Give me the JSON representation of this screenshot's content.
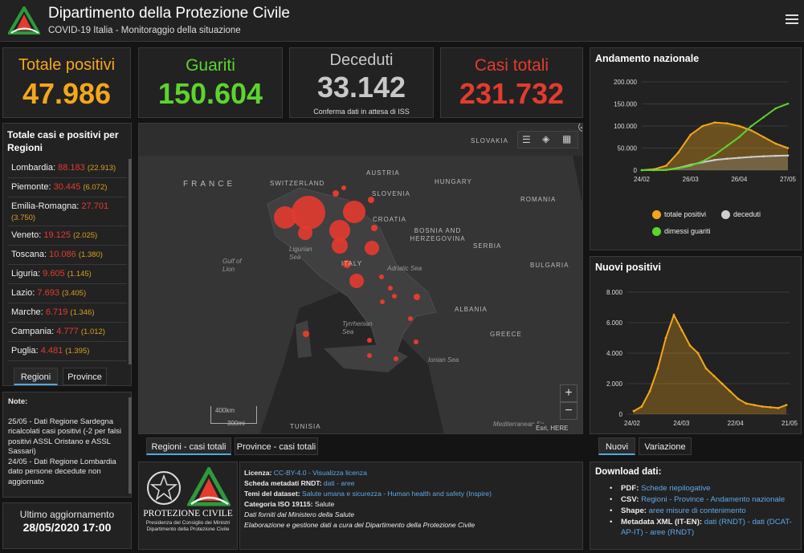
{
  "header": {
    "title": "Dipartimento della Protezione Civile",
    "subtitle": "COVID-19 Italia - Monitoraggio della situazione"
  },
  "stats": {
    "positivi": {
      "label": "Totale positivi",
      "value": "47.986",
      "color": "#f3a71b"
    },
    "guariti": {
      "label": "Guariti",
      "value": "150.604",
      "color": "#5cd52d"
    },
    "deceduti": {
      "label": "Deceduti",
      "value": "33.142",
      "note": "Conferma dati in attesa di ISS",
      "color": "#c8c8c8"
    },
    "totali": {
      "label": "Casi totali",
      "value": "231.732",
      "color": "#e43b2f"
    }
  },
  "regions_panel": {
    "title": "Totale casi e positivi per Regioni",
    "rows": [
      {
        "name": "Lombardia:",
        "cases": "88.183",
        "positives": "(22.913)"
      },
      {
        "name": "Piemonte:",
        "cases": "30.445",
        "positives": "(6.072)"
      },
      {
        "name": "Emilia-Romagna:",
        "cases": "27.701",
        "positives": "(3.750)"
      },
      {
        "name": "Veneto:",
        "cases": "19.125",
        "positives": "(2.025)"
      },
      {
        "name": "Toscana:",
        "cases": "10.086",
        "positives": "(1.380)"
      },
      {
        "name": "Liguria:",
        "cases": "9.605",
        "positives": "(1.145)"
      },
      {
        "name": "Lazio:",
        "cases": "7.693",
        "positives": "(3.405)"
      },
      {
        "name": "Marche:",
        "cases": "6.719",
        "positives": "(1.346)"
      },
      {
        "name": "Campania:",
        "cases": "4.777",
        "positives": "(1.012)"
      },
      {
        "name": "Puglia:",
        "cases": "4.481",
        "positives": "(1.395)"
      }
    ],
    "tabs": [
      "Regioni",
      "Province"
    ]
  },
  "notes": {
    "title": "Note:",
    "lines": [
      "25/05 - Dati Regione Sardegna ricalcolati casi positivi (-2 per falsi positivi ASSL Oristano e ASSL Sassari)",
      "24/05 - Dati Regione Lombardia dato persone decedute non aggiornato"
    ]
  },
  "last_update": {
    "label": "Ultimo aggiornamento",
    "value": "28/05/2020 17:00"
  },
  "map": {
    "labels": {
      "slovakia": "SLOVAKIA",
      "france": "FRANCE",
      "switzerland": "SWITZERLAND",
      "austria": "AUSTRIA",
      "hungary": "HUNGARY",
      "slovenia": "SLOVENIA",
      "romania": "ROMANIA",
      "croatia": "CROATIA",
      "bosnia": "BOSNIA AND HERZEGOVINA",
      "serbia": "SERBIA",
      "gulf": "Gulf of Lion",
      "ligurian": "Ligurian Sea",
      "italy": "ITALY",
      "adriatic": "Adriatic Sea",
      "bulgaria": "BULGARIA",
      "albania": "ALBANIA",
      "tyrrhenian": "Tyrrhenian Sea",
      "greece": "GREECE",
      "ionian": "Ionian Sea",
      "tunisia": "TUNISIA",
      "mediterranean": "Mediterranean Se",
      "scale_km": "400km",
      "scale_mi": "300mi",
      "attribution": "Esri, HERE"
    },
    "zoom_in": "+",
    "zoom_out": "−",
    "tabs": [
      "Regioni - casi totali",
      "Province - casi totali"
    ]
  },
  "info": {
    "lines": [
      {
        "label": "Licenza:",
        "text": "CC-BY-4.0 - Visualizza licenza"
      },
      {
        "label": "Scheda metadati RNDT:",
        "text": "dati - aree"
      },
      {
        "label": "Temi del dataset:",
        "text": "Salute umana e sicurezza - Human health and safety (Inspire)"
      },
      {
        "label": "Categoria ISO 19115:",
        "text": "Salute"
      },
      {
        "label": "",
        "text": "Dati forniti dal Ministero della Salute"
      },
      {
        "label": "",
        "text": "Elaborazione e gestione dati a cura del Dipartimento della Protezione Civile"
      }
    ],
    "logo_text": "PROTEZIONE CIVILE",
    "logo_sub": "Presidenza del Consiglio dei Ministri Dipartimento della Protezione Civile"
  },
  "download": {
    "title": "Download dati:",
    "items": [
      {
        "label": "PDF:",
        "text": "Schede riepilogative"
      },
      {
        "label": "CSV:",
        "text": "Regioni - Province - Andamento nazionale"
      },
      {
        "label": "Shape:",
        "text": "aree misure di contenimento"
      },
      {
        "label": "Metadata XML (IT-EN):",
        "text": "dati (RNDT) - dati (DCAT-AP-IT) - aree (RNDT)"
      }
    ]
  },
  "chart_data": [
    {
      "type": "line",
      "title": "Andamento nazionale",
      "x_labels": [
        "24/02",
        "26/03",
        "26/04",
        "27/05"
      ],
      "ylim": [
        0,
        200000
      ],
      "y_ticks": [
        "0",
        "50.000",
        "100.000",
        "150.000",
        "200.000"
      ],
      "legend": [
        "totale positivi",
        "deceduti",
        "dimessi guariti"
      ],
      "colors": [
        "#f3a71b",
        "#cfcfcf",
        "#5cd52d"
      ],
      "series": [
        {
          "name": "totale positivi",
          "values": [
            0,
            2000,
            10000,
            40000,
            80000,
            100000,
            108000,
            106000,
            100000,
            90000,
            75000,
            60000,
            50000
          ]
        },
        {
          "name": "deceduti",
          "values": [
            0,
            100,
            600,
            5000,
            12000,
            18000,
            23000,
            26000,
            28000,
            30000,
            31500,
            32500,
            33100
          ]
        },
        {
          "name": "dimessi guariti",
          "values": [
            0,
            50,
            500,
            4000,
            10000,
            20000,
            35000,
            55000,
            75000,
            100000,
            120000,
            140000,
            150600
          ]
        }
      ]
    },
    {
      "type": "area",
      "title": "Nuovi positivi",
      "x_labels": [
        "24/02",
        "24/03",
        "22/04",
        "21/05"
      ],
      "ylim": [
        0,
        8000
      ],
      "y_ticks": [
        "0",
        "2.000",
        "4.000",
        "6.000",
        "8.000"
      ],
      "values": [
        200,
        500,
        1500,
        3000,
        5000,
        6500,
        5500,
        4500,
        4000,
        3000,
        2500,
        2000,
        1500,
        1000,
        700,
        600,
        500,
        450,
        400,
        600
      ],
      "tabs": [
        "Nuovi",
        "Variazione"
      ]
    }
  ]
}
